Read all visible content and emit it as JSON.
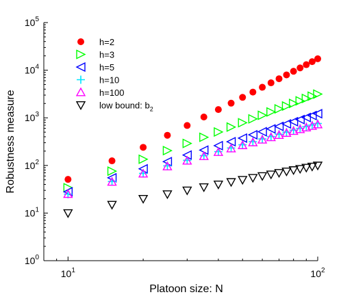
{
  "chart_data": {
    "type": "scatter",
    "xscale": "log",
    "yscale": "log",
    "xlim": [
      8,
      100
    ],
    "ylim": [
      1,
      100000
    ],
    "xlabel": "Platoon size: N",
    "ylabel": "Robustness measure",
    "grid": false,
    "legend_position": "top-left",
    "x_ticks": [
      {
        "base": "10",
        "exp": "1",
        "value": 10
      },
      {
        "base": "10",
        "exp": "2",
        "value": 100
      }
    ],
    "y_ticks": [
      {
        "base": "10",
        "exp": "0",
        "value": 1
      },
      {
        "base": "10",
        "exp": "1",
        "value": 10
      },
      {
        "base": "10",
        "exp": "2",
        "value": 100
      },
      {
        "base": "10",
        "exp": "3",
        "value": 1000
      },
      {
        "base": "10",
        "exp": "4",
        "value": 10000
      },
      {
        "base": "10",
        "exp": "5",
        "value": 100000
      }
    ],
    "x": [
      10,
      15,
      20,
      25,
      30,
      35,
      40,
      45,
      50,
      55,
      60,
      65,
      70,
      75,
      80,
      85,
      90,
      95,
      100
    ],
    "series": [
      {
        "name": "h=2",
        "marker": "circle",
        "color": "#ff0000",
        "values": [
          51,
          125,
          240,
          430,
          690,
          1040,
          1490,
          2030,
          2690,
          3470,
          4380,
          5430,
          6620,
          7970,
          9490,
          11180,
          13050,
          15110,
          17360
        ]
      },
      {
        "name": "h=3",
        "marker": "triangle-right",
        "color": "#00ff00",
        "values": [
          34,
          76,
          135,
          205,
          290,
          390,
          505,
          640,
          790,
          950,
          1130,
          1330,
          1540,
          1770,
          2010,
          2270,
          2550,
          2850,
          3150
        ]
      },
      {
        "name": "h=5",
        "marker": "triangle-left",
        "color": "#0000ff",
        "values": [
          28,
          55,
          85,
          120,
          165,
          210,
          260,
          315,
          375,
          440,
          510,
          585,
          660,
          745,
          830,
          920,
          1015,
          1115,
          1220
        ]
      },
      {
        "name": "h=10",
        "marker": "plus",
        "color": "#00e5ff",
        "values": [
          25,
          46,
          68,
          98,
          128,
          160,
          195,
          232,
          272,
          315,
          360,
          405,
          452,
          500,
          550,
          600,
          652,
          705,
          760
        ]
      },
      {
        "name": "h=100",
        "marker": "triangle-up",
        "color": "#ff00ff",
        "values": [
          25,
          45,
          67,
          95,
          125,
          156,
          190,
          226,
          264,
          304,
          346,
          389,
          433,
          479,
          525,
          573,
          622,
          672,
          722
        ]
      },
      {
        "name": "low bound: b",
        "name_sub": "2",
        "marker": "triangle-down",
        "color": "#000000",
        "values": [
          10,
          15,
          20,
          25,
          30,
          35,
          40,
          45,
          50,
          55,
          60,
          65,
          70,
          75,
          80,
          85,
          90,
          95,
          100
        ]
      }
    ]
  }
}
